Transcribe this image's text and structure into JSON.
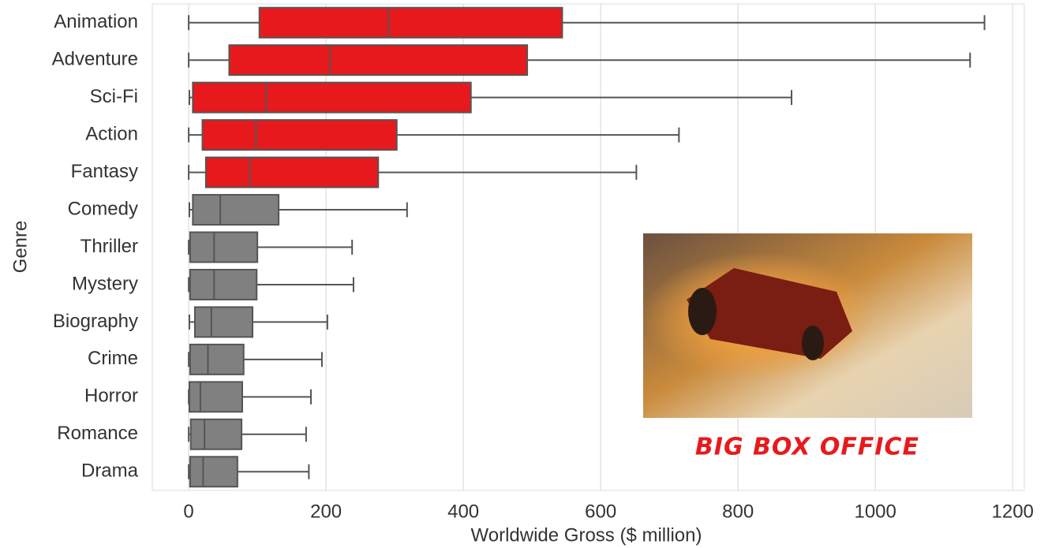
{
  "chart_data": {
    "type": "boxplot",
    "orientation": "horizontal",
    "categories": [
      "Animation",
      "Adventure",
      "Sci-Fi",
      "Action",
      "Fantasy",
      "Comedy",
      "Thriller",
      "Mystery",
      "Biography",
      "Crime",
      "Horror",
      "Romance",
      "Drama"
    ],
    "whislo": [
      0,
      0,
      1,
      0,
      0,
      1,
      0,
      0,
      1,
      0,
      0,
      0,
      0
    ],
    "q1": [
      103,
      59,
      6,
      20,
      25,
      6,
      2,
      2,
      9,
      2,
      1,
      3,
      2
    ],
    "median": [
      291,
      206,
      113,
      98,
      89,
      46,
      37,
      37,
      33,
      28,
      17,
      23,
      21
    ],
    "q3": [
      544,
      493,
      411,
      303,
      276,
      131,
      100,
      99,
      93,
      80,
      78,
      77,
      71
    ],
    "whishi": [
      1159,
      1138,
      878,
      714,
      652,
      318,
      238,
      240,
      202,
      194,
      178,
      171,
      175
    ],
    "colors": [
      "#e8191c",
      "#e8191c",
      "#e8191c",
      "#e8191c",
      "#e8191c",
      "#808080",
      "#808080",
      "#808080",
      "#808080",
      "#808080",
      "#808080",
      "#808080",
      "#808080"
    ],
    "xlim": [
      -53,
      1217
    ],
    "xticks": [
      0,
      200,
      400,
      600,
      800,
      1000,
      1200
    ],
    "xlabel": "Worldwide Gross ($ million)",
    "ylabel": "Genre",
    "grid": true,
    "annotation": "BIG BOX OFFICE"
  }
}
